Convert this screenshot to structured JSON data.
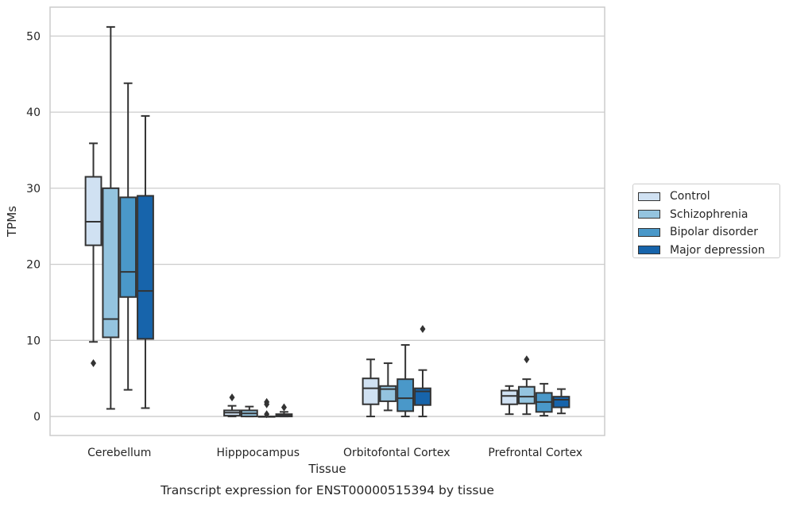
{
  "chart_data": {
    "type": "boxplot",
    "title": "Transcript expression for ENST00000515394 by tissue",
    "xlabel": "Tissue",
    "ylabel": "TPMs",
    "ylim": [
      -2.5,
      53.8
    ],
    "yticks": [
      0,
      10,
      20,
      30,
      40,
      50
    ],
    "grid": "horizontal",
    "legend_position": "right",
    "categories": [
      "Cerebellum",
      "Hipppocampus",
      "Orbitofontal Cortex",
      "Prefrontal Cortex"
    ],
    "series": [
      {
        "name": "Control",
        "color": "#d0e1f2",
        "boxes": [
          {
            "whisker_low": 9.8,
            "q1": 22.5,
            "median": 25.6,
            "q3": 31.5,
            "whisker_high": 35.9,
            "outliers": [
              7.0
            ]
          },
          {
            "whisker_low": 0.0,
            "q1": 0.1,
            "median": 0.5,
            "q3": 0.8,
            "whisker_high": 1.4,
            "outliers": [
              2.5
            ]
          },
          {
            "whisker_low": 0.0,
            "q1": 1.6,
            "median": 3.7,
            "q3": 5.0,
            "whisker_high": 7.5,
            "outliers": []
          },
          {
            "whisker_low": 0.3,
            "q1": 1.6,
            "median": 2.7,
            "q3": 3.4,
            "whisker_high": 4.0,
            "outliers": []
          }
        ]
      },
      {
        "name": "Schizophrenia",
        "color": "#94c4df",
        "boxes": [
          {
            "whisker_low": 1.0,
            "q1": 10.4,
            "median": 12.8,
            "q3": 30.0,
            "whisker_high": 51.2,
            "outliers": []
          },
          {
            "whisker_low": 0.0,
            "q1": 0.0,
            "median": 0.4,
            "q3": 0.8,
            "whisker_high": 1.3,
            "outliers": []
          },
          {
            "whisker_low": 0.8,
            "q1": 2.0,
            "median": 3.6,
            "q3": 4.0,
            "whisker_high": 7.0,
            "outliers": []
          },
          {
            "whisker_low": 0.3,
            "q1": 1.7,
            "median": 2.6,
            "q3": 3.9,
            "whisker_high": 4.9,
            "outliers": [
              7.5
            ]
          }
        ]
      },
      {
        "name": "Bipolar disorder",
        "color": "#4a98c9",
        "boxes": [
          {
            "whisker_low": 3.5,
            "q1": 15.7,
            "median": 19.0,
            "q3": 28.8,
            "whisker_high": 43.8,
            "outliers": []
          },
          {
            "whisker_low": 0.0,
            "q1": 0.0,
            "median": 0.0,
            "q3": 0.0,
            "whisker_high": 0.0,
            "outliers": [
              1.6,
              1.9,
              0.3
            ]
          },
          {
            "whisker_low": 0.0,
            "q1": 0.7,
            "median": 2.4,
            "q3": 4.9,
            "whisker_high": 9.4,
            "outliers": []
          },
          {
            "whisker_low": 0.1,
            "q1": 0.6,
            "median": 1.9,
            "q3": 3.1,
            "whisker_high": 4.3,
            "outliers": []
          }
        ]
      },
      {
        "name": "Major depression",
        "color": "#1764ab",
        "boxes": [
          {
            "whisker_low": 1.1,
            "q1": 10.2,
            "median": 16.5,
            "q3": 29.0,
            "whisker_high": 39.5,
            "outliers": []
          },
          {
            "whisker_low": 0.0,
            "q1": 0.0,
            "median": 0.2,
            "q3": 0.3,
            "whisker_high": 0.6,
            "outliers": [
              1.2
            ]
          },
          {
            "whisker_low": 0.0,
            "q1": 1.5,
            "median": 3.3,
            "q3": 3.7,
            "whisker_high": 6.1,
            "outliers": [
              11.5
            ]
          },
          {
            "whisker_low": 0.4,
            "q1": 1.2,
            "median": 2.2,
            "q3": 2.6,
            "whisker_high": 3.6,
            "outliers": []
          }
        ]
      }
    ]
  }
}
